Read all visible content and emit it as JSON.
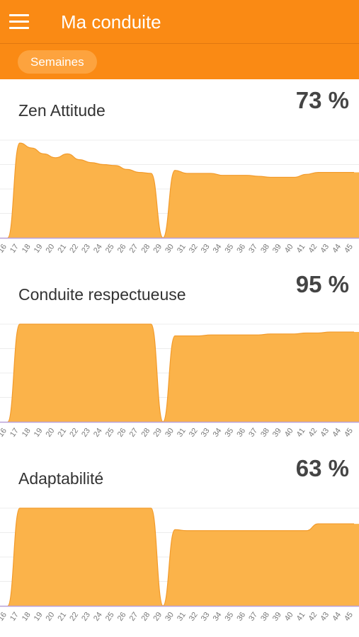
{
  "app": {
    "title": "Ma conduite",
    "menu_icon": "hamburger-menu-icon",
    "filter_chip": "Semaines"
  },
  "colors": {
    "header": "#FA8A14",
    "chip": "#FDA33E",
    "area_fill": "#FBB34A",
    "area_stroke": "#F29A2A",
    "baseline": "#B8A0D8"
  },
  "chart_data": [
    {
      "type": "area",
      "title": "Zen Attitude",
      "value_label": "73 %",
      "x": [
        "16",
        "17",
        "18",
        "19",
        "20",
        "21",
        "22",
        "23",
        "24",
        "25",
        "26",
        "27",
        "28",
        "29",
        "30",
        "31",
        "32",
        "33",
        "34",
        "35",
        "36",
        "37",
        "38",
        "39",
        "40",
        "41",
        "42",
        "43",
        "44",
        "45"
      ],
      "values": [
        0,
        97,
        92,
        86,
        82,
        86,
        80,
        77,
        75,
        74,
        70,
        67,
        66,
        0,
        69,
        66,
        66,
        66,
        64,
        64,
        64,
        63,
        62,
        62,
        62,
        65,
        67,
        67,
        67,
        67
      ],
      "ylim": [
        0,
        100
      ]
    },
    {
      "type": "area",
      "title": "Conduite respectueuse",
      "value_label": "95 %",
      "x": [
        "16",
        "17",
        "18",
        "19",
        "20",
        "21",
        "22",
        "23",
        "24",
        "25",
        "26",
        "27",
        "28",
        "29",
        "30",
        "31",
        "32",
        "33",
        "34",
        "35",
        "36",
        "37",
        "38",
        "39",
        "40",
        "41",
        "42",
        "43",
        "44",
        "45"
      ],
      "values": [
        0,
        100,
        100,
        100,
        100,
        100,
        100,
        100,
        100,
        100,
        100,
        100,
        100,
        0,
        88,
        88,
        88,
        89,
        89,
        89,
        89,
        89,
        90,
        90,
        90,
        91,
        91,
        92,
        92,
        92
      ],
      "ylim": [
        0,
        100
      ]
    },
    {
      "type": "area",
      "title": "Adaptabilité",
      "value_label": "63 %",
      "x": [
        "16",
        "17",
        "18",
        "19",
        "20",
        "21",
        "22",
        "23",
        "24",
        "25",
        "26",
        "27",
        "28",
        "29",
        "30",
        "31",
        "32",
        "33",
        "34",
        "35",
        "36",
        "37",
        "38",
        "39",
        "40",
        "41",
        "42",
        "43",
        "44",
        "45"
      ],
      "values": [
        0,
        100,
        100,
        100,
        100,
        100,
        100,
        100,
        100,
        100,
        100,
        100,
        100,
        0,
        78,
        77,
        77,
        77,
        77,
        77,
        77,
        77,
        77,
        77,
        77,
        77,
        84,
        84,
        84,
        84
      ],
      "ylim": [
        0,
        100
      ]
    }
  ]
}
